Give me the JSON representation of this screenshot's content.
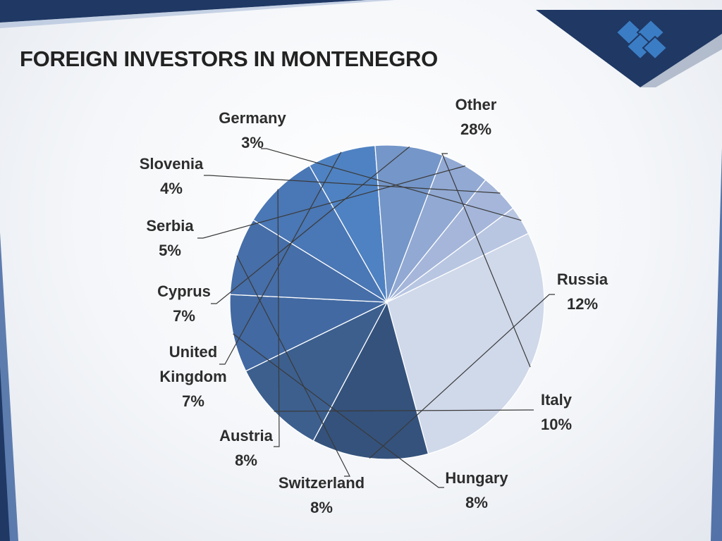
{
  "slide": {
    "title": "FOREIGN INVESTORS IN MONTENEGRO",
    "logo_icon": "kite-diamond-logo-icon",
    "accent_colors": {
      "dark_band": "#1f3864",
      "mid_band": "#2e5597",
      "logo": "#3b7dc4"
    }
  },
  "chart_data": {
    "type": "pie",
    "title": "",
    "slices": [
      {
        "label": "Other",
        "value": 28,
        "value_label": "28%",
        "color": "#d0d9ea"
      },
      {
        "label": "Russia",
        "value": 12,
        "value_label": "12%",
        "color": "#34527c"
      },
      {
        "label": "Italy",
        "value": 10,
        "value_label": "10%",
        "color": "#3c5f8e"
      },
      {
        "label": "Hungary",
        "value": 8,
        "value_label": "8%",
        "color": "#4269a2"
      },
      {
        "label": "Switzerland",
        "value": 8,
        "value_label": "8%",
        "color": "#466ea8"
      },
      {
        "label": "Austria",
        "value": 8,
        "value_label": "8%",
        "color": "#4a77b5"
      },
      {
        "label": "United Kingdom",
        "value": 7,
        "value_label": "7%",
        "color": "#4f82c2"
      },
      {
        "label": "Cyprus",
        "value": 7,
        "value_label": "7%",
        "color": "#7596c8"
      },
      {
        "label": "Serbia",
        "value": 5,
        "value_label": "5%",
        "color": "#91a9d3"
      },
      {
        "label": "Slovenia",
        "value": 4,
        "value_label": "4%",
        "color": "#a5b6da"
      },
      {
        "label": "Germany",
        "value": 3,
        "value_label": "3%",
        "color": "#b8c6e2"
      }
    ],
    "start_angle_deg": -26,
    "direction": "clockwise",
    "legend": "none",
    "data_labels": "outside with leader lines"
  }
}
